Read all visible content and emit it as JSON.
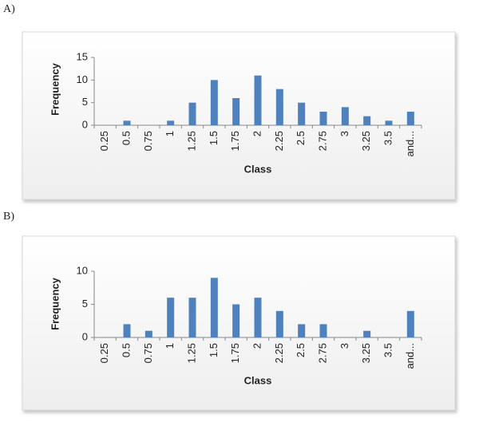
{
  "chart_data": [
    {
      "type": "bar",
      "panel_label": "A)",
      "xlabel": "Class",
      "ylabel": "Frequency",
      "categories": [
        "0.25",
        "0.5",
        "0.75",
        "1",
        "1.25",
        "1.5",
        "1.75",
        "2",
        "2.25",
        "2.5",
        "2.75",
        "3",
        "3.25",
        "3.5",
        "and..."
      ],
      "values": [
        0,
        1,
        0,
        1,
        5,
        10,
        6,
        11,
        8,
        5,
        3,
        4,
        2,
        1,
        3
      ],
      "color": "#4f81bd",
      "ylim": [
        0,
        15
      ],
      "yticks": [
        0,
        5,
        10,
        15
      ]
    },
    {
      "type": "bar",
      "panel_label": "B)",
      "xlabel": "Class",
      "ylabel": "Frequency",
      "categories": [
        "0.25",
        "0.5",
        "0.75",
        "1",
        "1.25",
        "1.5",
        "1.75",
        "2",
        "2.25",
        "2.5",
        "2.75",
        "3",
        "3.25",
        "3.5",
        "and..."
      ],
      "values": [
        0,
        2,
        1,
        6,
        6,
        9,
        5,
        6,
        4,
        2,
        2,
        0,
        1,
        0,
        4
      ],
      "color": "#4f81bd",
      "ylim": [
        0,
        10
      ],
      "yticks": [
        0,
        5,
        10
      ]
    }
  ]
}
